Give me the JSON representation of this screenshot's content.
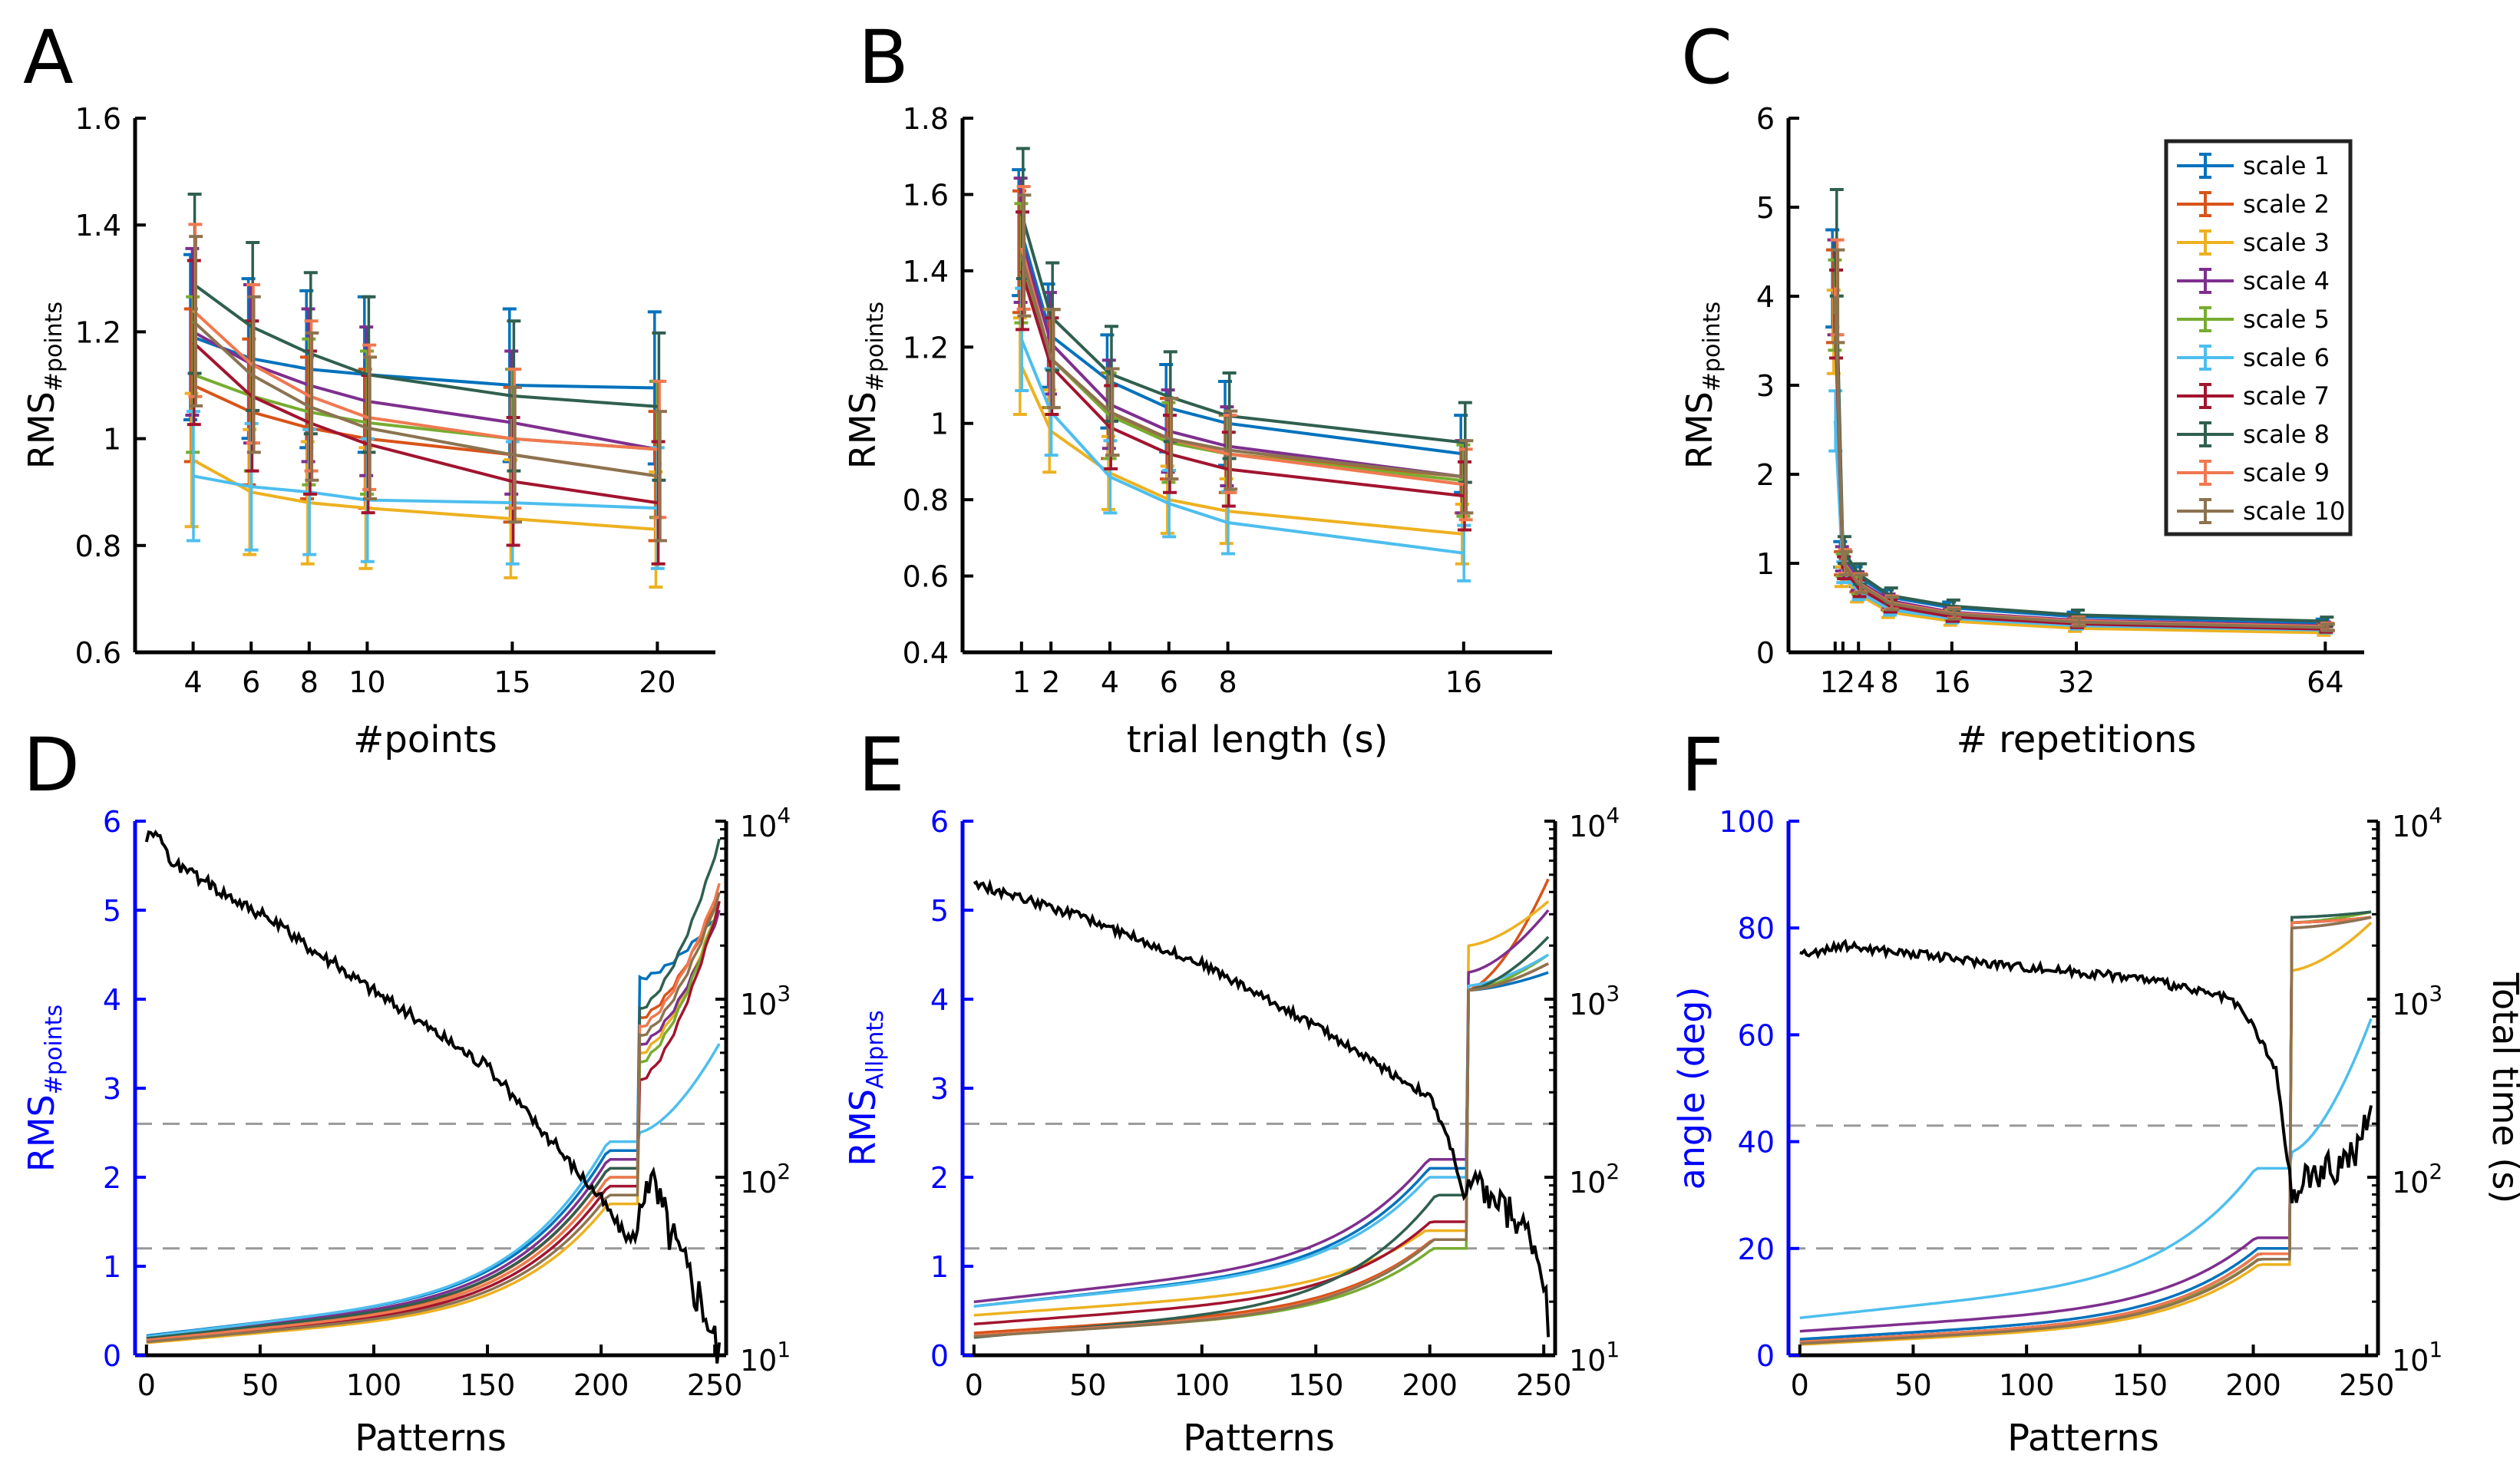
{
  "colors": {
    "scale": [
      "#0072BD",
      "#D95319",
      "#EDB120",
      "#7E2F8E",
      "#77AC30",
      "#4DBEEE",
      "#A2142F",
      "#2F5F4F",
      "#F07850",
      "#8C7350"
    ],
    "black": "#000000",
    "blue": "#0000FF",
    "dashed": "#999999"
  },
  "legend": [
    "scale 1",
    "scale 2",
    "scale 3",
    "scale 4",
    "scale 5",
    "scale 6",
    "scale 7",
    "scale 8",
    "scale 9",
    "scale 10"
  ],
  "chart_data": [
    {
      "id": "A",
      "type": "line",
      "panel_label": "A",
      "xlabel": "#points",
      "ylabel_main": "RMS",
      "ylabel_sub": "#points",
      "x": [
        4,
        6,
        8,
        10,
        15,
        20
      ],
      "xlim": [
        2,
        22
      ],
      "ylim": [
        0.6,
        1.6
      ],
      "xticks": [
        4,
        6,
        8,
        10,
        15,
        20
      ],
      "yticks": [
        0.6,
        0.8,
        1,
        1.2,
        1.4,
        1.6
      ],
      "ytick_labels": [
        "0.6",
        "0.8",
        "1",
        "1.2",
        "1.4",
        "1.6"
      ],
      "error_scale": 0.13,
      "series": [
        {
          "name": "scale 1",
          "values": [
            1.19,
            1.15,
            1.13,
            1.12,
            1.1,
            1.095
          ]
        },
        {
          "name": "scale 2",
          "values": [
            1.1,
            1.05,
            1.02,
            1.0,
            0.97,
            0.93
          ]
        },
        {
          "name": "scale 3",
          "values": [
            0.96,
            0.9,
            0.88,
            0.87,
            0.85,
            0.83
          ]
        },
        {
          "name": "scale 4",
          "values": [
            1.2,
            1.14,
            1.1,
            1.07,
            1.03,
            0.98
          ]
        },
        {
          "name": "scale 5",
          "values": [
            1.12,
            1.08,
            1.05,
            1.03,
            1.0,
            0.98
          ]
        },
        {
          "name": "scale 6",
          "values": [
            0.93,
            0.91,
            0.9,
            0.885,
            0.88,
            0.87
          ]
        },
        {
          "name": "scale 7",
          "values": [
            1.18,
            1.08,
            1.03,
            0.99,
            0.92,
            0.88
          ]
        },
        {
          "name": "scale 8",
          "values": [
            1.29,
            1.21,
            1.16,
            1.12,
            1.08,
            1.06
          ]
        },
        {
          "name": "scale 9",
          "values": [
            1.24,
            1.14,
            1.08,
            1.04,
            1.0,
            0.98
          ]
        },
        {
          "name": "scale 10",
          "values": [
            1.22,
            1.12,
            1.06,
            1.02,
            0.97,
            0.93
          ]
        }
      ]
    },
    {
      "id": "B",
      "type": "line",
      "panel_label": "B",
      "xlabel": "trial length (s)",
      "ylabel_main": "RMS",
      "ylabel_sub": "#points",
      "x": [
        1,
        2,
        4,
        6,
        8,
        16
      ],
      "xlim": [
        -1,
        19
      ],
      "ylim": [
        0.4,
        1.8
      ],
      "xticks": [
        1,
        2,
        4,
        6,
        8,
        16
      ],
      "yticks": [
        0.4,
        0.6,
        0.8,
        1,
        1.2,
        1.4,
        1.6,
        1.8
      ],
      "ytick_labels": [
        "0.4",
        "0.6",
        "0.8",
        "1",
        "1.2",
        "1.4",
        "1.6",
        "1.8"
      ],
      "error_scale": 0.11,
      "series": [
        {
          "name": "scale 1",
          "values": [
            1.5,
            1.23,
            1.11,
            1.04,
            1.0,
            0.92
          ]
        },
        {
          "name": "scale 2",
          "values": [
            1.45,
            1.17,
            1.02,
            0.96,
            0.92,
            0.86
          ]
        },
        {
          "name": "scale 3",
          "values": [
            1.15,
            0.98,
            0.87,
            0.8,
            0.77,
            0.71
          ]
        },
        {
          "name": "scale 4",
          "values": [
            1.48,
            1.21,
            1.05,
            0.98,
            0.94,
            0.86
          ]
        },
        {
          "name": "scale 5",
          "values": [
            1.42,
            1.17,
            1.02,
            0.95,
            0.92,
            0.85
          ]
        },
        {
          "name": "scale 6",
          "values": [
            1.22,
            1.03,
            0.86,
            0.79,
            0.74,
            0.66
          ]
        },
        {
          "name": "scale 7",
          "values": [
            1.4,
            1.15,
            0.99,
            0.92,
            0.88,
            0.81
          ]
        },
        {
          "name": "scale 8",
          "values": [
            1.55,
            1.28,
            1.13,
            1.07,
            1.02,
            0.95
          ]
        },
        {
          "name": "scale 9",
          "values": [
            1.46,
            1.17,
            1.03,
            0.96,
            0.92,
            0.84
          ]
        },
        {
          "name": "scale 10",
          "values": [
            1.44,
            1.17,
            1.03,
            0.96,
            0.93,
            0.86
          ]
        }
      ]
    },
    {
      "id": "C",
      "type": "line",
      "panel_label": "C",
      "xlabel": "# repetitions",
      "ylabel_main": "RMS",
      "ylabel_sub": "#points",
      "x": [
        1,
        2,
        4,
        8,
        16,
        32,
        64
      ],
      "xlim": [
        -5,
        69
      ],
      "ylim": [
        0,
        6
      ],
      "xticks": [
        1,
        2,
        4,
        8,
        16,
        32,
        64
      ],
      "xtick_labels": [
        "1",
        "2",
        "4",
        "8",
        "16",
        "32",
        "64"
      ],
      "yticks": [
        0,
        1,
        2,
        3,
        4,
        5,
        6
      ],
      "ytick_labels": [
        "0",
        "1",
        "2",
        "3",
        "4",
        "5",
        "6"
      ],
      "error_scale": 0.13,
      "series": [
        {
          "name": "scale 1",
          "values": [
            4.2,
            1.1,
            0.85,
            0.62,
            0.5,
            0.4,
            0.33
          ]
        },
        {
          "name": "scale 2",
          "values": [
            4.0,
            1.0,
            0.78,
            0.55,
            0.43,
            0.34,
            0.28
          ]
        },
        {
          "name": "scale 3",
          "values": [
            3.6,
            0.85,
            0.65,
            0.45,
            0.35,
            0.27,
            0.22
          ]
        },
        {
          "name": "scale 4",
          "values": [
            4.1,
            1.05,
            0.8,
            0.58,
            0.45,
            0.36,
            0.3
          ]
        },
        {
          "name": "scale 5",
          "values": [
            3.9,
            0.98,
            0.75,
            0.53,
            0.42,
            0.33,
            0.27
          ]
        },
        {
          "name": "scale 6",
          "values": [
            2.6,
            0.9,
            0.68,
            0.48,
            0.38,
            0.3,
            0.25
          ]
        },
        {
          "name": "scale 7",
          "values": [
            3.8,
            0.95,
            0.72,
            0.52,
            0.4,
            0.32,
            0.26
          ]
        },
        {
          "name": "scale 8",
          "values": [
            4.6,
            1.15,
            0.88,
            0.64,
            0.52,
            0.42,
            0.35
          ]
        },
        {
          "name": "scale 9",
          "values": [
            4.1,
            1.02,
            0.78,
            0.56,
            0.44,
            0.35,
            0.29
          ]
        },
        {
          "name": "scale 10",
          "values": [
            4.0,
            1.0,
            0.77,
            0.55,
            0.43,
            0.34,
            0.28
          ]
        }
      ]
    },
    {
      "id": "D",
      "type": "line",
      "panel_label": "D",
      "xlabel": "Patterns",
      "ylabel_main": "RMS",
      "ylabel_sub": "#points",
      "xlim": [
        -5,
        255
      ],
      "ylim": [
        0,
        6
      ],
      "xticks": [
        0,
        50,
        100,
        150,
        200,
        250
      ],
      "yticks": [
        0,
        1,
        2,
        3,
        4,
        5,
        6
      ],
      "ytick_labels": [
        "0",
        "1",
        "2",
        "3",
        "4",
        "5",
        "6"
      ],
      "right_axis": {
        "log_range": [
          1,
          4
        ],
        "labels": [
          "10",
          "10",
          "10",
          "10"
        ],
        "exps": [
          "1",
          "2",
          "3",
          "4"
        ],
        "label": ""
      },
      "dashed_y": [
        2.6,
        1.2
      ],
      "jump_x": 216,
      "series": [
        {
          "name": "scale 1",
          "start": 0.22,
          "pre": 2.3,
          "post": 4.25,
          "end": 5.0
        },
        {
          "name": "scale 2",
          "start": 0.18,
          "pre": 2.1,
          "post": 3.8,
          "end": 5.2
        },
        {
          "name": "scale 3",
          "start": 0.14,
          "pre": 1.7,
          "post": 3.4,
          "end": 5.1
        },
        {
          "name": "scale 4",
          "start": 0.2,
          "pre": 2.2,
          "post": 3.5,
          "end": 5.0
        },
        {
          "name": "scale 5",
          "start": 0.17,
          "pre": 2.0,
          "post": 3.3,
          "end": 5.1
        },
        {
          "name": "scale 6",
          "start": 0.21,
          "pre": 2.4,
          "post": 2.5,
          "end": 3.5
        },
        {
          "name": "scale 7",
          "start": 0.16,
          "pre": 1.9,
          "post": 3.1,
          "end": 5.1
        },
        {
          "name": "scale 8",
          "start": 0.19,
          "pre": 2.1,
          "post": 3.9,
          "end": 5.8
        },
        {
          "name": "scale 9",
          "start": 0.17,
          "pre": 2.0,
          "post": 3.7,
          "end": 5.3
        },
        {
          "name": "scale 10",
          "start": 0.15,
          "pre": 1.8,
          "post": 3.6,
          "end": 5.2
        }
      ],
      "time_series": {
        "points": [
          [
            0,
            3.9
          ],
          [
            3,
            3.95
          ],
          [
            8,
            3.88
          ],
          [
            10,
            3.78
          ],
          [
            50,
            3.48
          ],
          [
            100,
            3.05
          ],
          [
            150,
            2.62
          ],
          [
            200,
            1.88
          ],
          [
            208,
            1.72
          ],
          [
            213,
            1.65
          ],
          [
            216,
            1.7
          ],
          [
            220,
            2.05
          ],
          [
            235,
            1.55
          ],
          [
            245,
            1.3
          ],
          [
            252,
            1.0
          ]
        ],
        "noise": 0.035
      }
    },
    {
      "id": "E",
      "type": "line",
      "panel_label": "E",
      "xlabel": "Patterns",
      "ylabel_main": "RMS",
      "ylabel_sub": "Allpnts",
      "xlim": [
        -5,
        255
      ],
      "ylim": [
        0,
        6
      ],
      "xticks": [
        0,
        50,
        100,
        150,
        200,
        250
      ],
      "yticks": [
        0,
        1,
        2,
        3,
        4,
        5,
        6
      ],
      "ytick_labels": [
        "0",
        "1",
        "2",
        "3",
        "4",
        "5",
        "6"
      ],
      "right_axis": {
        "log_range": [
          1,
          4
        ],
        "labels": [
          "10",
          "10",
          "10",
          "10"
        ],
        "exps": [
          "1",
          "2",
          "3",
          "4"
        ],
        "label": ""
      },
      "dashed_y": [
        2.6,
        1.2
      ],
      "jump_x": 216,
      "series": [
        {
          "name": "scale 1",
          "start": 0.55,
          "pre": 2.1,
          "post": 4.1,
          "end": 4.3
        },
        {
          "name": "scale 2",
          "start": 0.25,
          "pre": 1.3,
          "post": 4.1,
          "end": 5.35
        },
        {
          "name": "scale 3",
          "start": 0.45,
          "pre": 1.4,
          "post": 4.6,
          "end": 5.1
        },
        {
          "name": "scale 4",
          "start": 0.6,
          "pre": 2.2,
          "post": 4.3,
          "end": 5.0
        },
        {
          "name": "scale 5",
          "start": 0.22,
          "pre": 1.2,
          "post": 4.1,
          "end": 4.5
        },
        {
          "name": "scale 6",
          "start": 0.55,
          "pre": 2.0,
          "post": 4.15,
          "end": 4.5
        },
        {
          "name": "scale 7",
          "start": 0.35,
          "pre": 1.5,
          "post": 4.1,
          "end": 4.4
        },
        {
          "name": "scale 8",
          "start": 0.2,
          "pre": 1.8,
          "post": 4.1,
          "end": 4.7
        },
        {
          "name": "scale 9",
          "start": 0.22,
          "pre": 1.3,
          "post": 4.1,
          "end": 4.4
        },
        {
          "name": "scale 10",
          "start": 0.21,
          "pre": 1.3,
          "post": 4.1,
          "end": 4.4
        }
      ],
      "time_series": {
        "points": [
          [
            0,
            3.65
          ],
          [
            50,
            3.45
          ],
          [
            100,
            3.2
          ],
          [
            150,
            2.85
          ],
          [
            200,
            2.45
          ],
          [
            210,
            2.15
          ],
          [
            215,
            1.88
          ],
          [
            220,
            1.95
          ],
          [
            235,
            1.8
          ],
          [
            245,
            1.65
          ],
          [
            250,
            1.45
          ],
          [
            252,
            1.15
          ]
        ],
        "noise": 0.025
      }
    },
    {
      "id": "F",
      "type": "line",
      "panel_label": "F",
      "xlabel": "Patterns",
      "ylabel_main": "angle (deg)",
      "ylabel_sub": "",
      "xlim": [
        -5,
        255
      ],
      "ylim": [
        0,
        100
      ],
      "xticks": [
        0,
        50,
        100,
        150,
        200,
        250
      ],
      "yticks": [
        0,
        20,
        40,
        60,
        80,
        100
      ],
      "ytick_labels": [
        "0",
        "20",
        "40",
        "60",
        "80",
        "100"
      ],
      "right_axis": {
        "log_range": [
          1,
          4
        ],
        "labels": [
          "10",
          "10",
          "10",
          "10"
        ],
        "exps": [
          "1",
          "2",
          "3",
          "4"
        ],
        "label": "Total time (s)"
      },
      "dashed_y": [
        43,
        20
      ],
      "jump_x": 216,
      "series": [
        {
          "name": "scale 1",
          "start": 3.0,
          "pre": 20,
          "post": 82,
          "end": 83
        },
        {
          "name": "scale 2",
          "start": 2.5,
          "pre": 19,
          "post": 81,
          "end": 82
        },
        {
          "name": "scale 3",
          "start": 2.0,
          "pre": 17,
          "post": 72,
          "end": 81
        },
        {
          "name": "scale 4",
          "start": 4.5,
          "pre": 22,
          "post": 80,
          "end": 82
        },
        {
          "name": "scale 5",
          "start": 2.5,
          "pre": 18,
          "post": 81,
          "end": 83
        },
        {
          "name": "scale 6",
          "start": 7.0,
          "pre": 35,
          "post": 38,
          "end": 63
        },
        {
          "name": "scale 7",
          "start": 2.5,
          "pre": 19,
          "post": 81,
          "end": 82
        },
        {
          "name": "scale 8",
          "start": 2.5,
          "pre": 19,
          "post": 82,
          "end": 83
        },
        {
          "name": "scale 9",
          "start": 2.5,
          "pre": 19,
          "post": 81,
          "end": 82
        },
        {
          "name": "scale 10",
          "start": 2.2,
          "pre": 18,
          "post": 80,
          "end": 82
        }
      ],
      "time_series": {
        "points": [
          [
            0,
            3.25
          ],
          [
            20,
            3.3
          ],
          [
            100,
            3.18
          ],
          [
            150,
            3.12
          ],
          [
            190,
            3.0
          ],
          [
            200,
            2.85
          ],
          [
            210,
            2.6
          ],
          [
            214,
            2.2
          ],
          [
            218,
            1.85
          ],
          [
            222,
            2.0
          ],
          [
            235,
            2.05
          ],
          [
            245,
            2.15
          ],
          [
            252,
            2.35
          ]
        ],
        "noise": 0.025
      }
    }
  ]
}
